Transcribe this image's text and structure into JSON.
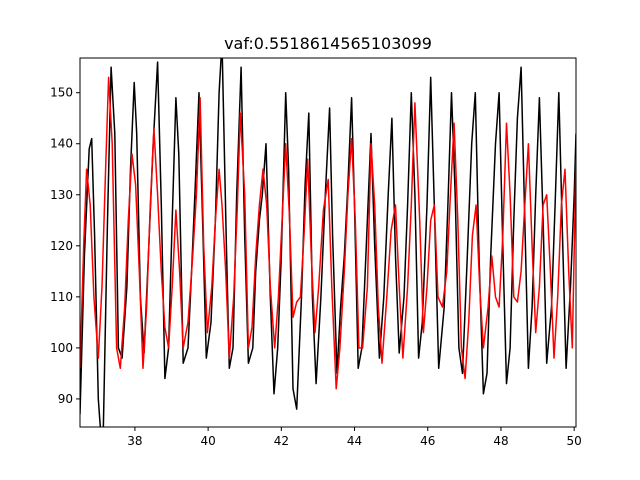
{
  "chart_data": {
    "type": "line",
    "title": "vaf:0.5518614565103099",
    "xlabel": "",
    "ylabel": "",
    "xlim": [
      36.5,
      50.05
    ],
    "ylim": [
      84.5,
      156.8
    ],
    "xticks": [
      38,
      40,
      42,
      44,
      46,
      48,
      50
    ],
    "yticks": [
      90,
      100,
      110,
      120,
      130,
      140,
      150
    ],
    "grid": false,
    "legend": "none",
    "series": [
      {
        "color": "#000000",
        "points": [
          [
            36.5,
            87
          ],
          [
            36.62,
            118
          ],
          [
            36.75,
            139
          ],
          [
            36.82,
            141
          ],
          [
            36.9,
            122
          ],
          [
            37.0,
            90
          ],
          [
            37.12,
            78
          ],
          [
            37.25,
            125
          ],
          [
            37.35,
            155
          ],
          [
            37.45,
            142
          ],
          [
            37.55,
            100
          ],
          [
            37.65,
            98
          ],
          [
            37.78,
            112
          ],
          [
            37.88,
            135
          ],
          [
            37.98,
            152
          ],
          [
            38.05,
            142
          ],
          [
            38.15,
            110
          ],
          [
            38.25,
            99
          ],
          [
            38.38,
            120
          ],
          [
            38.5,
            140
          ],
          [
            38.62,
            156
          ],
          [
            38.72,
            128
          ],
          [
            38.82,
            94
          ],
          [
            38.92,
            100
          ],
          [
            39.02,
            125
          ],
          [
            39.12,
            149
          ],
          [
            39.2,
            138
          ],
          [
            39.32,
            97
          ],
          [
            39.45,
            100
          ],
          [
            39.55,
            115
          ],
          [
            39.65,
            132
          ],
          [
            39.75,
            150
          ],
          [
            39.85,
            125
          ],
          [
            39.95,
            98
          ],
          [
            40.08,
            105
          ],
          [
            40.2,
            125
          ],
          [
            40.3,
            150
          ],
          [
            40.38,
            160
          ],
          [
            40.5,
            120
          ],
          [
            40.58,
            96
          ],
          [
            40.68,
            100
          ],
          [
            40.78,
            130
          ],
          [
            40.9,
            155
          ],
          [
            41.0,
            122
          ],
          [
            41.1,
            97
          ],
          [
            41.22,
            100
          ],
          [
            41.3,
            115
          ],
          [
            41.4,
            125
          ],
          [
            41.48,
            130
          ],
          [
            41.58,
            140
          ],
          [
            41.7,
            110
          ],
          [
            41.8,
            91
          ],
          [
            41.9,
            100
          ],
          [
            42.0,
            118
          ],
          [
            42.12,
            150
          ],
          [
            42.2,
            135
          ],
          [
            42.32,
            92
          ],
          [
            42.42,
            88
          ],
          [
            42.55,
            110
          ],
          [
            42.65,
            132
          ],
          [
            42.75,
            146
          ],
          [
            42.85,
            110
          ],
          [
            42.95,
            93
          ],
          [
            43.08,
            110
          ],
          [
            43.2,
            130
          ],
          [
            43.32,
            147
          ],
          [
            43.4,
            122
          ],
          [
            43.52,
            95
          ],
          [
            43.62,
            108
          ],
          [
            43.72,
            118
          ],
          [
            43.82,
            132
          ],
          [
            43.92,
            149
          ],
          [
            44.0,
            128
          ],
          [
            44.1,
            96
          ],
          [
            44.2,
            100
          ],
          [
            44.32,
            120
          ],
          [
            44.45,
            142
          ],
          [
            44.55,
            120
          ],
          [
            44.68,
            98
          ],
          [
            44.8,
            110
          ],
          [
            44.92,
            130
          ],
          [
            45.02,
            145
          ],
          [
            45.12,
            118
          ],
          [
            45.22,
            99
          ],
          [
            45.35,
            110
          ],
          [
            45.45,
            128
          ],
          [
            45.55,
            150
          ],
          [
            45.65,
            130
          ],
          [
            45.75,
            98
          ],
          [
            45.85,
            105
          ],
          [
            45.98,
            128
          ],
          [
            46.08,
            153
          ],
          [
            46.18,
            128
          ],
          [
            46.3,
            96
          ],
          [
            46.45,
            108
          ],
          [
            46.55,
            128
          ],
          [
            46.65,
            150
          ],
          [
            46.75,
            130
          ],
          [
            46.85,
            100
          ],
          [
            46.95,
            95
          ],
          [
            47.08,
            118
          ],
          [
            47.2,
            140
          ],
          [
            47.3,
            150
          ],
          [
            47.4,
            118
          ],
          [
            47.52,
            91
          ],
          [
            47.62,
            95
          ],
          [
            47.72,
            118
          ],
          [
            47.85,
            140
          ],
          [
            47.95,
            150
          ],
          [
            48.05,
            120
          ],
          [
            48.15,
            93
          ],
          [
            48.25,
            100
          ],
          [
            48.35,
            125
          ],
          [
            48.45,
            145
          ],
          [
            48.55,
            155
          ],
          [
            48.65,
            125
          ],
          [
            48.75,
            96
          ],
          [
            48.85,
            108
          ],
          [
            48.95,
            130
          ],
          [
            49.05,
            149
          ],
          [
            49.15,
            125
          ],
          [
            49.25,
            97
          ],
          [
            49.38,
            108
          ],
          [
            49.48,
            128
          ],
          [
            49.58,
            150
          ],
          [
            49.68,
            122
          ],
          [
            49.78,
            96
          ],
          [
            49.9,
            112
          ],
          [
            50.0,
            130
          ],
          [
            50.05,
            142
          ]
        ]
      },
      {
        "color": "#ff0000",
        "points": [
          [
            36.5,
            96
          ],
          [
            36.6,
            120
          ],
          [
            36.68,
            135
          ],
          [
            36.78,
            128
          ],
          [
            36.88,
            110
          ],
          [
            37.0,
            98
          ],
          [
            37.1,
            112
          ],
          [
            37.2,
            135
          ],
          [
            37.28,
            153
          ],
          [
            37.38,
            140
          ],
          [
            37.5,
            100
          ],
          [
            37.6,
            96
          ],
          [
            37.72,
            108
          ],
          [
            37.82,
            125
          ],
          [
            37.92,
            138
          ],
          [
            38.02,
            132
          ],
          [
            38.12,
            115
          ],
          [
            38.22,
            96
          ],
          [
            38.32,
            108
          ],
          [
            38.42,
            128
          ],
          [
            38.52,
            143
          ],
          [
            38.62,
            130
          ],
          [
            38.72,
            115
          ],
          [
            38.82,
            104
          ],
          [
            38.92,
            100
          ],
          [
            39.02,
            112
          ],
          [
            39.12,
            127
          ],
          [
            39.22,
            115
          ],
          [
            39.32,
            100
          ],
          [
            39.45,
            105
          ],
          [
            39.58,
            118
          ],
          [
            39.68,
            130
          ],
          [
            39.78,
            149
          ],
          [
            39.88,
            120
          ],
          [
            39.98,
            103
          ],
          [
            40.1,
            112
          ],
          [
            40.2,
            125
          ],
          [
            40.3,
            135
          ],
          [
            40.38,
            128
          ],
          [
            40.48,
            115
          ],
          [
            40.58,
            98
          ],
          [
            40.7,
            110
          ],
          [
            40.8,
            128
          ],
          [
            40.88,
            146
          ],
          [
            41.0,
            130
          ],
          [
            41.1,
            100
          ],
          [
            41.2,
            104
          ],
          [
            41.3,
            118
          ],
          [
            41.4,
            128
          ],
          [
            41.5,
            135
          ],
          [
            41.6,
            128
          ],
          [
            41.7,
            112
          ],
          [
            41.82,
            100
          ],
          [
            41.92,
            110
          ],
          [
            42.02,
            125
          ],
          [
            42.12,
            140
          ],
          [
            42.22,
            126
          ],
          [
            42.32,
            106
          ],
          [
            42.42,
            109
          ],
          [
            42.52,
            110
          ],
          [
            42.62,
            122
          ],
          [
            42.72,
            137
          ],
          [
            42.82,
            118
          ],
          [
            42.92,
            103
          ],
          [
            43.02,
            112
          ],
          [
            43.15,
            127
          ],
          [
            43.28,
            133
          ],
          [
            43.38,
            112
          ],
          [
            43.5,
            92
          ],
          [
            43.6,
            100
          ],
          [
            43.72,
            115
          ],
          [
            43.82,
            130
          ],
          [
            43.92,
            141
          ],
          [
            44.02,
            125
          ],
          [
            44.12,
            100
          ],
          [
            44.22,
            100
          ],
          [
            44.35,
            112
          ],
          [
            44.45,
            140
          ],
          [
            44.55,
            128
          ],
          [
            44.65,
            108
          ],
          [
            44.75,
            97
          ],
          [
            44.88,
            110
          ],
          [
            45.0,
            123
          ],
          [
            45.12,
            128
          ],
          [
            45.22,
            112
          ],
          [
            45.32,
            98
          ],
          [
            45.45,
            112
          ],
          [
            45.55,
            128
          ],
          [
            45.65,
            148
          ],
          [
            45.78,
            125
          ],
          [
            45.88,
            103
          ],
          [
            45.98,
            112
          ],
          [
            46.08,
            125
          ],
          [
            46.18,
            128
          ],
          [
            46.28,
            110
          ],
          [
            46.4,
            108
          ],
          [
            46.52,
            115
          ],
          [
            46.62,
            130
          ],
          [
            46.72,
            144
          ],
          [
            46.82,
            125
          ],
          [
            46.92,
            100
          ],
          [
            47.02,
            94
          ],
          [
            47.12,
            105
          ],
          [
            47.22,
            122
          ],
          [
            47.32,
            128
          ],
          [
            47.42,
            112
          ],
          [
            47.52,
            100
          ],
          [
            47.65,
            108
          ],
          [
            47.75,
            118
          ],
          [
            47.85,
            110
          ],
          [
            47.95,
            108
          ],
          [
            48.05,
            122
          ],
          [
            48.15,
            144
          ],
          [
            48.25,
            130
          ],
          [
            48.35,
            110
          ],
          [
            48.45,
            109
          ],
          [
            48.55,
            115
          ],
          [
            48.65,
            128
          ],
          [
            48.75,
            140
          ],
          [
            48.85,
            120
          ],
          [
            48.95,
            103
          ],
          [
            49.05,
            112
          ],
          [
            49.15,
            128
          ],
          [
            49.25,
            130
          ],
          [
            49.35,
            115
          ],
          [
            49.45,
            98
          ],
          [
            49.55,
            110
          ],
          [
            49.65,
            128
          ],
          [
            49.75,
            135
          ],
          [
            49.85,
            115
          ],
          [
            49.95,
            100
          ],
          [
            50.05,
            137
          ]
        ]
      }
    ]
  }
}
